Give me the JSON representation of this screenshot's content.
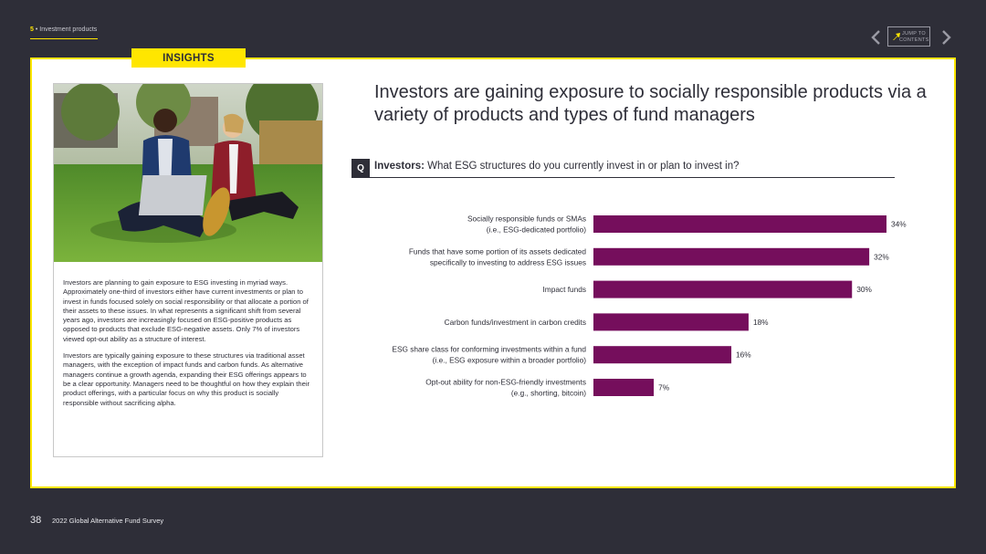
{
  "header": {
    "section_number": "5",
    "section_title": " • Investment products",
    "jump_to_contents": "JUMP TO CONTENTS"
  },
  "insights_tab": "INSIGHTS",
  "card": {
    "paragraph_1": "Investors are planning to gain exposure to ESG investing in myriad ways. Approximately one-third of investors either have current investments or plan to invest in funds focused solely on social responsibility or that allocate a portion of their assets to these issues. In what represents a significant shift from several years ago, investors are increasingly focused on ESG-positive products as opposed to products that exclude ESG-negative assets. Only 7% of investors viewed opt-out ability as a structure of interest.",
    "paragraph_2": "Investors are typically gaining exposure to these structures via traditional asset managers, with the exception of impact funds and carbon funds. As alternative managers continue a growth agenda, expanding their ESG offerings appears to be a clear opportunity. Managers need to be thoughtful on how they explain their product offerings, with a particular focus on why this product is socially responsible without sacrificing alpha."
  },
  "headline": "Investors are gaining exposure to socially responsible products via a variety of products and types of fund managers",
  "question": {
    "marker": "Q",
    "audience": "Investors:",
    "text": " What ESG structures do you currently invest in or plan to invest in?"
  },
  "chart_data": {
    "type": "bar",
    "orientation": "horizontal",
    "categories": [
      [
        "Socially responsible funds or SMAs",
        "(i.e., ESG-dedicated portfolio)"
      ],
      [
        "Funds that have some portion of its assets dedicated",
        "specifically to investing to address ESG issues"
      ],
      [
        "Impact funds"
      ],
      [
        "Carbon funds/investment in carbon credits"
      ],
      [
        "ESG share class for conforming investments within a fund",
        "(i.e., ESG exposure within a broader portfolio)"
      ],
      [
        "Opt-out ability for non-ESG-friendly investments",
        "(e.g., shorting, bitcoin)"
      ]
    ],
    "values": [
      34,
      32,
      30,
      18,
      16,
      7
    ],
    "value_labels": [
      "34%",
      "32%",
      "30%",
      "18%",
      "16%",
      "7%"
    ],
    "xlim": [
      0,
      34
    ],
    "bar_color": "#750e5c",
    "grid": false,
    "legend": "none"
  },
  "footer": {
    "page_number": "38",
    "report_title": "2022 Global Alternative Fund Survey"
  },
  "colors": {
    "background": "#2e2e38",
    "accent": "#ffe600",
    "bar": "#750e5c"
  }
}
